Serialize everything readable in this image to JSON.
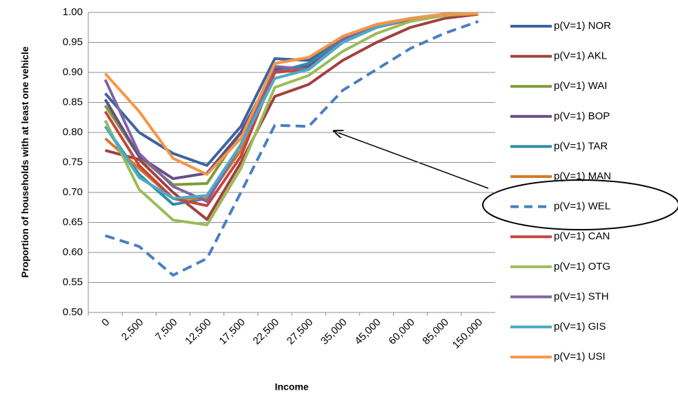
{
  "chart_data": {
    "type": "line",
    "x_label": "Income",
    "y_label": "Proportion of households with at least one vehicle",
    "categories": [
      "0",
      "2,500",
      "7,500",
      "12,500",
      "17,500",
      "22,500",
      "27,500",
      "35,000",
      "45,000",
      "60,000",
      "85,000",
      "150,000"
    ],
    "ylim": [
      0.5,
      1.0
    ],
    "yticks": [
      {
        "value": 0.5,
        "label": "0.50"
      },
      {
        "value": 0.55,
        "label": "0.55"
      },
      {
        "value": 0.6,
        "label": "0.60"
      },
      {
        "value": 0.65,
        "label": "0.65"
      },
      {
        "value": 0.7,
        "label": "0.70"
      },
      {
        "value": 0.75,
        "label": "0.75"
      },
      {
        "value": 0.8,
        "label": "0.80"
      },
      {
        "value": 0.85,
        "label": "0.85"
      },
      {
        "value": 0.9,
        "label": "0.90"
      },
      {
        "value": 0.95,
        "label": "0.95"
      },
      {
        "value": 1.0,
        "label": "1.00"
      }
    ],
    "grid": true,
    "legend": "right",
    "series": [
      {
        "name": "p(V=1) NOR",
        "color": "#3a64a0",
        "values": [
          0.865,
          0.8,
          0.765,
          0.745,
          0.81,
          0.923,
          0.92,
          0.96,
          0.98,
          0.99,
          0.997,
          0.998
        ]
      },
      {
        "name": "p(V=1) AKL",
        "color": "#a2403d",
        "values": [
          0.77,
          0.755,
          0.7,
          0.655,
          0.75,
          0.86,
          0.88,
          0.92,
          0.95,
          0.975,
          0.99,
          0.997
        ]
      },
      {
        "name": "p(V=1) WAI",
        "color": "#7f9a3c",
        "values": [
          0.845,
          0.76,
          0.713,
          0.715,
          0.8,
          0.905,
          0.91,
          0.955,
          0.975,
          0.99,
          0.997,
          0.998
        ]
      },
      {
        "name": "p(V=1) BOP",
        "color": "#664d8a",
        "values": [
          0.855,
          0.76,
          0.723,
          0.732,
          0.8,
          0.905,
          0.91,
          0.955,
          0.978,
          0.99,
          0.997,
          0.998
        ]
      },
      {
        "name": "p(V=1) TAR",
        "color": "#2d8ca4",
        "values": [
          0.81,
          0.73,
          0.68,
          0.69,
          0.78,
          0.9,
          0.915,
          0.955,
          0.975,
          0.99,
          0.997,
          0.998
        ]
      },
      {
        "name": "p(V=1) MAN",
        "color": "#d27b2a",
        "values": [
          0.79,
          0.74,
          0.69,
          0.69,
          0.77,
          0.915,
          0.925,
          0.96,
          0.98,
          0.99,
          0.997,
          0.998
        ]
      },
      {
        "name": "p(V=1) WEL",
        "color": "#4a7fc0",
        "dashed": true,
        "values": [
          0.628,
          0.61,
          0.562,
          0.59,
          0.7,
          0.812,
          0.81,
          0.87,
          0.905,
          0.94,
          0.965,
          0.985
        ]
      },
      {
        "name": "p(V=1) CAN",
        "color": "#c9443e",
        "values": [
          0.835,
          0.745,
          0.69,
          0.678,
          0.76,
          0.9,
          0.905,
          0.95,
          0.975,
          0.988,
          0.997,
          0.998
        ]
      },
      {
        "name": "p(V=1) OTG",
        "color": "#9bbb59",
        "values": [
          0.82,
          0.705,
          0.654,
          0.646,
          0.74,
          0.875,
          0.895,
          0.935,
          0.965,
          0.985,
          0.995,
          0.998
        ]
      },
      {
        "name": "p(V=1) STH",
        "color": "#8064a2",
        "values": [
          0.888,
          0.765,
          0.71,
          0.685,
          0.78,
          0.91,
          0.905,
          0.955,
          0.978,
          0.99,
          0.997,
          0.998
        ]
      },
      {
        "name": "p(V=1) GIS",
        "color": "#4bacc6",
        "values": [
          0.81,
          0.725,
          0.69,
          0.695,
          0.78,
          0.89,
          0.905,
          0.95,
          0.975,
          0.99,
          0.997,
          0.998
        ]
      },
      {
        "name": "p(V=1) USI",
        "color": "#f79646",
        "values": [
          0.898,
          0.835,
          0.757,
          0.73,
          0.79,
          0.915,
          0.925,
          0.96,
          0.98,
          0.99,
          0.997,
          0.998
        ]
      }
    ]
  }
}
